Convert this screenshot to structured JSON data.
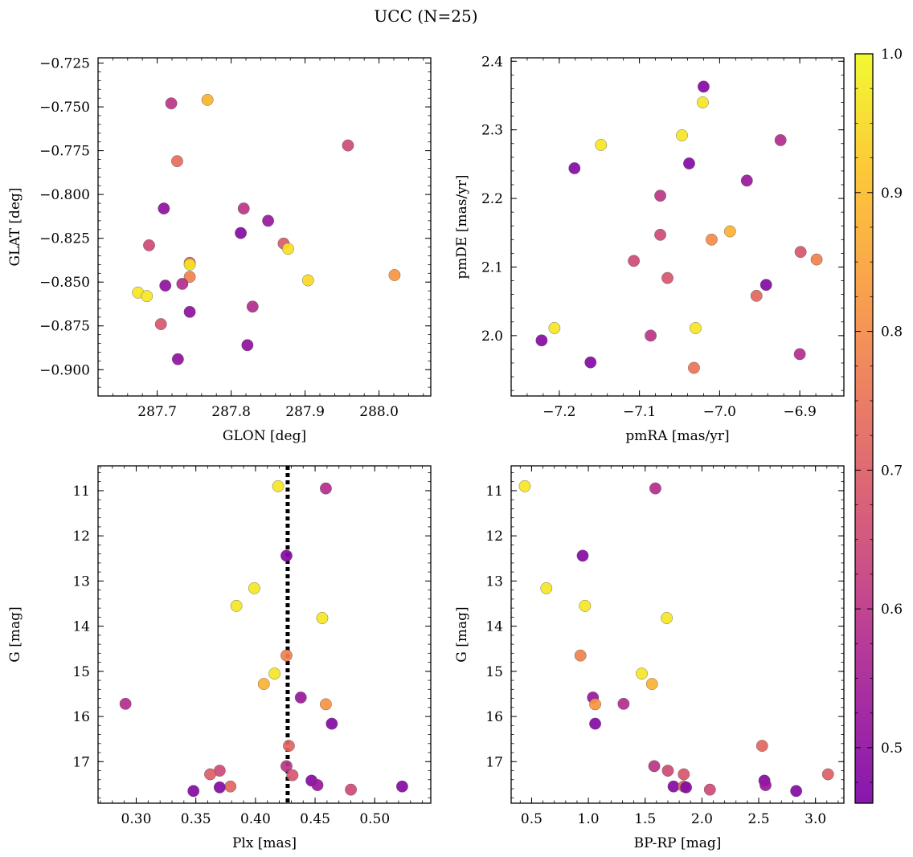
{
  "figure": {
    "title": "UCC (N=25)"
  },
  "colorbar": {
    "range": [
      0.46,
      1.0
    ],
    "ticks": [
      0.5,
      0.6,
      0.7,
      0.8,
      0.9,
      1.0
    ],
    "tick_labels": [
      "0.5",
      "0.6",
      "0.7",
      "0.8",
      "0.9",
      "1.0"
    ],
    "colormap": "plasma"
  },
  "chart_data": [
    {
      "type": "scatter",
      "xlabel": "GLON [deg]",
      "ylabel": "GLAT [deg]",
      "xlim": [
        287.62,
        288.07
      ],
      "ylim": [
        -0.915,
        -0.722
      ],
      "xticks": [
        287.7,
        287.8,
        287.9,
        288.0
      ],
      "xtick_labels": [
        "287.7",
        "287.8",
        "287.9",
        "288.0"
      ],
      "yticks": [
        -0.725,
        -0.75,
        -0.775,
        -0.8,
        -0.825,
        -0.85,
        -0.875,
        -0.9
      ],
      "ytick_labels": [
        "−0.725",
        "−0.750",
        "−0.775",
        "−0.800",
        "−0.825",
        "−0.850",
        "−0.875",
        "−0.900"
      ],
      "points": [
        {
          "x": 287.719,
          "y": -0.748,
          "c": 0.6
        },
        {
          "x": 287.768,
          "y": -0.746,
          "c": 0.88
        },
        {
          "x": 287.958,
          "y": -0.772,
          "c": 0.65
        },
        {
          "x": 287.727,
          "y": -0.781,
          "c": 0.74
        },
        {
          "x": 287.709,
          "y": -0.808,
          "c": 0.5
        },
        {
          "x": 287.817,
          "y": -0.808,
          "c": 0.6
        },
        {
          "x": 287.85,
          "y": -0.815,
          "c": 0.52
        },
        {
          "x": 287.813,
          "y": -0.822,
          "c": 0.48
        },
        {
          "x": 287.689,
          "y": -0.829,
          "c": 0.65
        },
        {
          "x": 287.871,
          "y": -0.828,
          "c": 0.69
        },
        {
          "x": 287.877,
          "y": -0.831,
          "c": 0.96
        },
        {
          "x": 287.744,
          "y": -0.839,
          "c": 0.7
        },
        {
          "x": 287.744,
          "y": -0.84,
          "c": 0.97
        },
        {
          "x": 287.744,
          "y": -0.847,
          "c": 0.78
        },
        {
          "x": 287.904,
          "y": -0.849,
          "c": 0.95
        },
        {
          "x": 288.021,
          "y": -0.846,
          "c": 0.82
        },
        {
          "x": 287.711,
          "y": -0.852,
          "c": 0.5
        },
        {
          "x": 287.734,
          "y": -0.851,
          "c": 0.58
        },
        {
          "x": 287.674,
          "y": -0.856,
          "c": 0.97
        },
        {
          "x": 287.686,
          "y": -0.858,
          "c": 0.97
        },
        {
          "x": 287.744,
          "y": -0.867,
          "c": 0.5
        },
        {
          "x": 287.829,
          "y": -0.864,
          "c": 0.58
        },
        {
          "x": 287.705,
          "y": -0.874,
          "c": 0.68
        },
        {
          "x": 287.728,
          "y": -0.894,
          "c": 0.5
        },
        {
          "x": 287.822,
          "y": -0.886,
          "c": 0.5
        }
      ]
    },
    {
      "type": "scatter",
      "xlabel": "pmRA [mas/yr]",
      "ylabel": "pmDE [mas/yr]",
      "xlim": [
        -7.26,
        -6.845
      ],
      "ylim": [
        1.912,
        2.405
      ],
      "xticks": [
        -7.2,
        -7.1,
        -7.0,
        -6.9
      ],
      "xtick_labels": [
        "−7.2",
        "−7.1",
        "−7.0",
        "−6.9"
      ],
      "yticks": [
        2.0,
        2.1,
        2.2,
        2.3,
        2.4
      ],
      "ytick_labels": [
        "2.0",
        "2.1",
        "2.2",
        "2.3",
        "2.4"
      ],
      "points": [
        {
          "x": -7.02,
          "y": 2.363,
          "c": 0.48
        },
        {
          "x": -7.021,
          "y": 2.34,
          "c": 0.97
        },
        {
          "x": -7.047,
          "y": 2.292,
          "c": 0.97
        },
        {
          "x": -7.148,
          "y": 2.278,
          "c": 0.97
        },
        {
          "x": -6.924,
          "y": 2.285,
          "c": 0.58
        },
        {
          "x": -7.181,
          "y": 2.244,
          "c": 0.48
        },
        {
          "x": -7.038,
          "y": 2.251,
          "c": 0.48
        },
        {
          "x": -6.966,
          "y": 2.226,
          "c": 0.52
        },
        {
          "x": -7.074,
          "y": 2.204,
          "c": 0.6
        },
        {
          "x": -7.074,
          "y": 2.147,
          "c": 0.65
        },
        {
          "x": -7.01,
          "y": 2.14,
          "c": 0.8
        },
        {
          "x": -6.987,
          "y": 2.152,
          "c": 0.88
        },
        {
          "x": -7.107,
          "y": 2.109,
          "c": 0.65
        },
        {
          "x": -6.899,
          "y": 2.122,
          "c": 0.68
        },
        {
          "x": -6.879,
          "y": 2.111,
          "c": 0.78
        },
        {
          "x": -7.065,
          "y": 2.084,
          "c": 0.68
        },
        {
          "x": -6.942,
          "y": 2.074,
          "c": 0.48
        },
        {
          "x": -6.954,
          "y": 2.058,
          "c": 0.72
        },
        {
          "x": -7.206,
          "y": 2.011,
          "c": 0.97
        },
        {
          "x": -7.03,
          "y": 2.011,
          "c": 0.97
        },
        {
          "x": -7.086,
          "y": 2.0,
          "c": 0.6
        },
        {
          "x": -7.222,
          "y": 1.993,
          "c": 0.48
        },
        {
          "x": -6.9,
          "y": 1.973,
          "c": 0.58
        },
        {
          "x": -7.161,
          "y": 1.961,
          "c": 0.48
        },
        {
          "x": -7.032,
          "y": 1.953,
          "c": 0.75
        }
      ]
    },
    {
      "type": "scatter",
      "xlabel": "Plx [mas]",
      "ylabel": "G [mag]",
      "xlim": [
        0.268,
        0.547
      ],
      "ylim": [
        17.92,
        10.45
      ],
      "y_inverted": true,
      "xticks": [
        0.3,
        0.35,
        0.4,
        0.45,
        0.5
      ],
      "xtick_labels": [
        "0.30",
        "0.35",
        "0.40",
        "0.45",
        "0.50"
      ],
      "yticks": [
        11,
        12,
        13,
        14,
        15,
        16,
        17
      ],
      "ytick_labels": [
        "11",
        "12",
        "13",
        "14",
        "15",
        "16",
        "17"
      ],
      "vline": {
        "x": 0.427,
        "style": "dotted"
      },
      "points": [
        {
          "x": 0.419,
          "y": 10.9,
          "c": 0.97
        },
        {
          "x": 0.459,
          "y": 10.95,
          "c": 0.58
        },
        {
          "x": 0.426,
          "y": 12.44,
          "c": 0.48
        },
        {
          "x": 0.399,
          "y": 13.16,
          "c": 0.97
        },
        {
          "x": 0.384,
          "y": 13.55,
          "c": 0.97
        },
        {
          "x": 0.456,
          "y": 13.82,
          "c": 0.97
        },
        {
          "x": 0.426,
          "y": 14.65,
          "c": 0.78
        },
        {
          "x": 0.416,
          "y": 15.05,
          "c": 0.97
        },
        {
          "x": 0.407,
          "y": 15.28,
          "c": 0.88
        },
        {
          "x": 0.438,
          "y": 15.58,
          "c": 0.52
        },
        {
          "x": 0.459,
          "y": 15.73,
          "c": 0.82
        },
        {
          "x": 0.291,
          "y": 15.72,
          "c": 0.58
        },
        {
          "x": 0.464,
          "y": 16.16,
          "c": 0.48
        },
        {
          "x": 0.428,
          "y": 16.65,
          "c": 0.72
        },
        {
          "x": 0.426,
          "y": 17.1,
          "c": 0.6
        },
        {
          "x": 0.37,
          "y": 17.2,
          "c": 0.65
        },
        {
          "x": 0.362,
          "y": 17.28,
          "c": 0.7
        },
        {
          "x": 0.431,
          "y": 17.3,
          "c": 0.68
        },
        {
          "x": 0.447,
          "y": 17.42,
          "c": 0.48
        },
        {
          "x": 0.452,
          "y": 17.52,
          "c": 0.52
        },
        {
          "x": 0.379,
          "y": 17.55,
          "c": 0.72
        },
        {
          "x": 0.37,
          "y": 17.57,
          "c": 0.48
        },
        {
          "x": 0.523,
          "y": 17.55,
          "c": 0.48
        },
        {
          "x": 0.348,
          "y": 17.65,
          "c": 0.48
        },
        {
          "x": 0.48,
          "y": 17.62,
          "c": 0.65
        }
      ]
    },
    {
      "type": "scatter",
      "xlabel": "BP-RP [mag]",
      "ylabel": "G [mag]",
      "xlim": [
        0.32,
        3.25
      ],
      "ylim": [
        17.92,
        10.45
      ],
      "y_inverted": true,
      "xticks": [
        0.5,
        1.0,
        1.5,
        2.0,
        2.5,
        3.0
      ],
      "xtick_labels": [
        "0.5",
        "1.0",
        "1.5",
        "2.0",
        "2.5",
        "3.0"
      ],
      "yticks": [
        11,
        12,
        13,
        14,
        15,
        16,
        17
      ],
      "ytick_labels": [
        "11",
        "12",
        "13",
        "14",
        "15",
        "16",
        "17"
      ],
      "points": [
        {
          "x": 0.44,
          "y": 10.9,
          "c": 0.97
        },
        {
          "x": 1.59,
          "y": 10.95,
          "c": 0.58
        },
        {
          "x": 0.95,
          "y": 12.44,
          "c": 0.48
        },
        {
          "x": 0.63,
          "y": 13.16,
          "c": 0.97
        },
        {
          "x": 0.97,
          "y": 13.55,
          "c": 0.97
        },
        {
          "x": 1.69,
          "y": 13.82,
          "c": 0.97
        },
        {
          "x": 0.93,
          "y": 14.65,
          "c": 0.78
        },
        {
          "x": 1.47,
          "y": 15.05,
          "c": 0.97
        },
        {
          "x": 1.56,
          "y": 15.28,
          "c": 0.88
        },
        {
          "x": 1.04,
          "y": 15.58,
          "c": 0.52
        },
        {
          "x": 1.06,
          "y": 15.73,
          "c": 0.82
        },
        {
          "x": 1.31,
          "y": 15.72,
          "c": 0.58
        },
        {
          "x": 1.06,
          "y": 16.16,
          "c": 0.48
        },
        {
          "x": 2.53,
          "y": 16.65,
          "c": 0.72
        },
        {
          "x": 1.58,
          "y": 17.1,
          "c": 0.6
        },
        {
          "x": 1.7,
          "y": 17.2,
          "c": 0.65
        },
        {
          "x": 1.84,
          "y": 17.28,
          "c": 0.68
        },
        {
          "x": 3.11,
          "y": 17.28,
          "c": 0.7
        },
        {
          "x": 2.55,
          "y": 17.42,
          "c": 0.48
        },
        {
          "x": 2.56,
          "y": 17.52,
          "c": 0.52
        },
        {
          "x": 1.75,
          "y": 17.55,
          "c": 0.48
        },
        {
          "x": 1.84,
          "y": 17.55,
          "c": 0.72
        },
        {
          "x": 1.86,
          "y": 17.57,
          "c": 0.48
        },
        {
          "x": 2.07,
          "y": 17.62,
          "c": 0.65
        },
        {
          "x": 2.83,
          "y": 17.65,
          "c": 0.48
        }
      ]
    }
  ]
}
